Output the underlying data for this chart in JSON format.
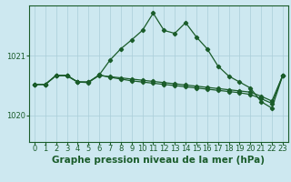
{
  "title": "Graphe pression niveau de la mer (hPa)",
  "bg_color": "#cde8f0",
  "grid_color": "#aacdd8",
  "line_color": "#1a5c2a",
  "xlim": [
    -0.5,
    23.5
  ],
  "ylim": [
    1019.55,
    1021.85
  ],
  "yticks": [
    1020,
    1021
  ],
  "xticks": [
    0,
    1,
    2,
    3,
    4,
    5,
    6,
    7,
    8,
    9,
    10,
    11,
    12,
    13,
    14,
    15,
    16,
    17,
    18,
    19,
    20,
    21,
    22,
    23
  ],
  "s1": [
    1020.52,
    1020.52,
    1020.67,
    1020.67,
    1020.56,
    1020.55,
    1020.68,
    1020.93,
    1021.12,
    1021.27,
    1021.43,
    1021.72,
    1021.43,
    1021.38,
    1021.56,
    1021.32,
    1021.12,
    1020.83,
    1020.66,
    1020.56,
    1020.46,
    1020.23,
    1020.12,
    1020.67
  ],
  "s2": [
    1020.52,
    1020.52,
    1020.67,
    1020.67,
    1020.56,
    1020.56,
    1020.67,
    1020.65,
    1020.63,
    1020.61,
    1020.59,
    1020.57,
    1020.55,
    1020.53,
    1020.51,
    1020.49,
    1020.47,
    1020.45,
    1020.43,
    1020.41,
    1020.39,
    1020.32,
    1020.24,
    1020.67
  ],
  "s3": [
    1020.52,
    1020.52,
    1020.67,
    1020.67,
    1020.56,
    1020.56,
    1020.68,
    1020.64,
    1020.61,
    1020.58,
    1020.56,
    1020.54,
    1020.52,
    1020.5,
    1020.48,
    1020.46,
    1020.44,
    1020.42,
    1020.4,
    1020.38,
    1020.35,
    1020.28,
    1020.2,
    1020.67
  ],
  "title_fontsize": 7.5,
  "tick_fontsize": 6.0
}
